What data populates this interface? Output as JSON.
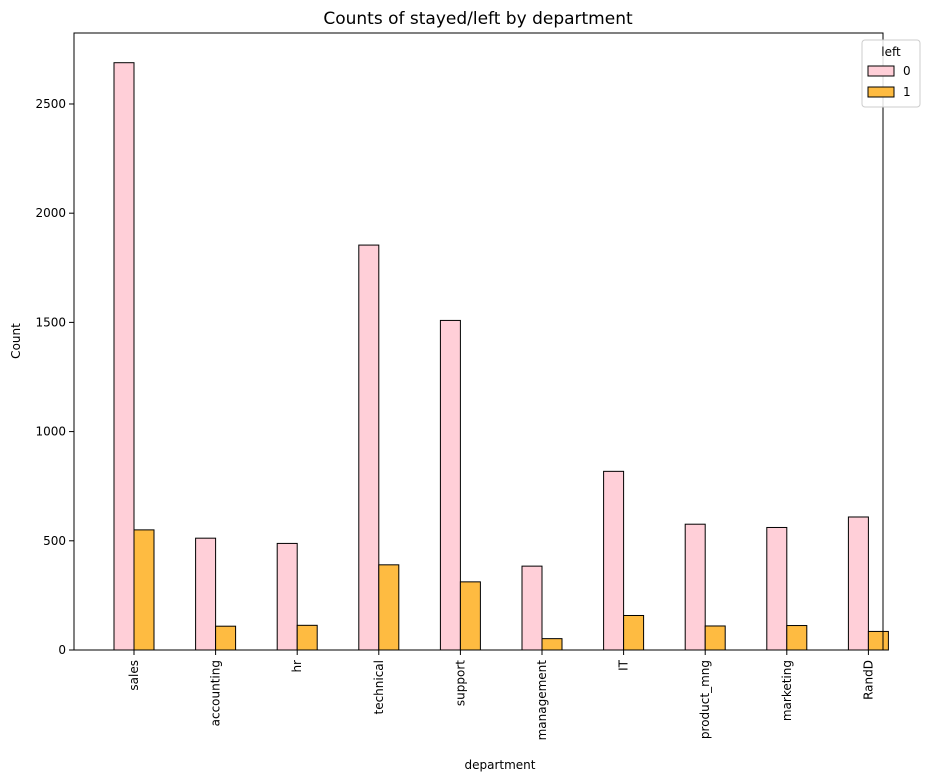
{
  "chart_data": {
    "type": "bar",
    "title": "Counts of stayed/left by department",
    "xlabel": "department",
    "ylabel": "Count",
    "ylim": [
      0,
      2825
    ],
    "yticks": [
      0,
      500,
      1000,
      1500,
      2000,
      2500
    ],
    "grid": false,
    "legend": {
      "title": "left",
      "position": "top-right"
    },
    "categories": [
      "sales",
      "accounting",
      "hr",
      "technical",
      "support",
      "management",
      "IT",
      "product_mng",
      "marketing",
      "RandD"
    ],
    "series": [
      {
        "name": "0",
        "color": "#ffcfd8",
        "values": [
          2689,
          512,
          488,
          1854,
          1509,
          384,
          818,
          576,
          561,
          609
        ]
      },
      {
        "name": "1",
        "color": "#febb41",
        "values": [
          550,
          109,
          113,
          390,
          312,
          52,
          158,
          110,
          112,
          85
        ]
      }
    ]
  }
}
